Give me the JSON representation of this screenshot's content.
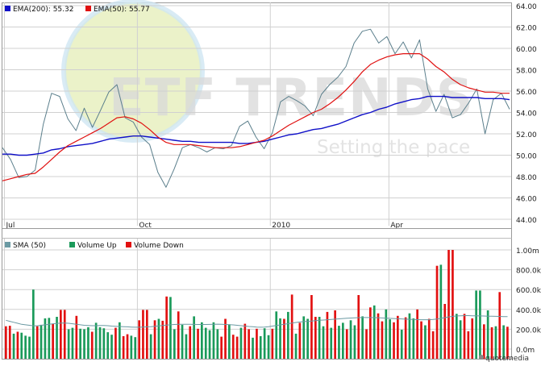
{
  "watermark": {
    "brand": "ETF TRENDS",
    "tagline": "Setting the pace"
  },
  "footer": {
    "credit": "quotemedia"
  },
  "colors": {
    "price": "#5b7f8c",
    "ema200": "#1010c8",
    "ema50": "#e01010",
    "sma50": "#6b9aa3",
    "volume_up": "#1a9a5a",
    "volume_down": "#e21010",
    "grid": "#d0d0d0",
    "axis_text": "#222222",
    "watermark_circle": "#e8efb8"
  },
  "chart_data": [
    {
      "type": "line",
      "panel": "price",
      "legend": [
        {
          "name": "EMA(200)",
          "value": "55.32",
          "color": "#1010c8"
        },
        {
          "name": "EMA(50)",
          "value": "55.77",
          "color": "#e01010"
        }
      ],
      "x_tick_labels": [
        "Jul",
        "Oct",
        "2010",
        "Apr"
      ],
      "x_tick_positions": [
        1,
        66,
        131,
        189
      ],
      "y_tick_labels": [
        "44.00",
        "46.00",
        "48.00",
        "50.00",
        "52.00",
        "54.00",
        "56.00",
        "58.00",
        "60.00",
        "62.00",
        "64.00"
      ],
      "ylim": [
        44,
        64
      ],
      "grid": true,
      "x": [
        0,
        4,
        8,
        12,
        16,
        20,
        24,
        28,
        32,
        36,
        40,
        44,
        48,
        52,
        56,
        60,
        64,
        68,
        72,
        76,
        80,
        84,
        88,
        92,
        96,
        100,
        104,
        108,
        112,
        116,
        120,
        124,
        128,
        132,
        136,
        140,
        144,
        148,
        152,
        156,
        160,
        164,
        168,
        172,
        176,
        180,
        184,
        188,
        192,
        196,
        200,
        204,
        208,
        212,
        216,
        220,
        224,
        228,
        232,
        236,
        240,
        244,
        248
      ],
      "series": [
        {
          "name": "Price",
          "values": [
            50.7,
            49.6,
            47.9,
            48.0,
            48.6,
            52.9,
            55.8,
            55.5,
            53.4,
            52.3,
            54.4,
            52.6,
            54.2,
            55.9,
            56.6,
            53.5,
            53.1,
            51.7,
            51.0,
            48.4,
            47.0,
            48.7,
            50.7,
            51.0,
            50.7,
            50.3,
            50.7,
            50.6,
            50.9,
            52.7,
            53.2,
            51.7,
            50.6,
            52.1,
            55.0,
            55.5,
            55.1,
            54.6,
            53.7,
            55.7,
            56.6,
            57.3,
            58.3,
            60.5,
            61.6,
            61.8,
            60.5,
            61.1,
            59.5,
            60.6,
            59.1,
            60.8,
            56.2,
            54.1,
            55.7,
            53.5,
            53.8,
            54.9,
            56.2,
            52.0,
            55.2,
            55.8,
            54.3
          ]
        },
        {
          "name": "EMA(200)",
          "values": [
            50.1,
            50.1,
            50.0,
            50.0,
            50.1,
            50.2,
            50.5,
            50.6,
            50.8,
            50.9,
            51.0,
            51.1,
            51.3,
            51.5,
            51.6,
            51.7,
            51.8,
            51.8,
            51.7,
            51.6,
            51.5,
            51.4,
            51.3,
            51.3,
            51.2,
            51.2,
            51.2,
            51.2,
            51.2,
            51.1,
            51.1,
            51.2,
            51.3,
            51.5,
            51.7,
            51.9,
            52.0,
            52.2,
            52.4,
            52.5,
            52.7,
            52.9,
            53.2,
            53.5,
            53.8,
            54.0,
            54.3,
            54.5,
            54.8,
            55.0,
            55.2,
            55.3,
            55.5,
            55.5,
            55.5,
            55.4,
            55.4,
            55.4,
            55.4,
            55.3,
            55.3,
            55.3,
            55.2
          ]
        },
        {
          "name": "EMA(50)",
          "values": [
            47.6,
            47.8,
            48.0,
            48.2,
            48.3,
            48.9,
            49.6,
            50.3,
            50.9,
            51.3,
            51.7,
            52.1,
            52.5,
            53.0,
            53.5,
            53.6,
            53.4,
            53.0,
            52.4,
            51.7,
            51.2,
            51.0,
            51.0,
            51.0,
            50.9,
            50.8,
            50.7,
            50.7,
            50.7,
            50.8,
            51.0,
            51.2,
            51.4,
            51.8,
            52.3,
            52.8,
            53.2,
            53.6,
            54.0,
            54.3,
            54.8,
            55.4,
            56.1,
            56.9,
            57.8,
            58.5,
            58.9,
            59.2,
            59.4,
            59.5,
            59.5,
            59.5,
            59.0,
            58.3,
            57.8,
            57.1,
            56.6,
            56.3,
            56.1,
            55.9,
            55.9,
            55.8,
            55.8
          ]
        }
      ]
    },
    {
      "type": "bar",
      "panel": "volume",
      "legend": [
        {
          "name": "SMA (50)",
          "color": "#6b9aa3"
        },
        {
          "name": "Volume Up",
          "color": "#1a9a5a"
        },
        {
          "name": "Volume Down",
          "color": "#e21010"
        }
      ],
      "y_tick_labels": [
        "0.0m",
        "200.0k",
        "400.0k",
        "600.0k",
        "800.0k",
        "1.00m"
      ],
      "ylim": [
        0,
        1000000
      ],
      "grid": true,
      "series": [
        {
          "name": "Volume",
          "values": [
            230000,
            235000,
            155000,
            175000,
            165000,
            135000,
            125000,
            600000,
            230000,
            245000,
            310000,
            315000,
            255000,
            325000,
            395000,
            395000,
            200000,
            215000,
            335000,
            205000,
            200000,
            220000,
            175000,
            265000,
            220000,
            210000,
            170000,
            145000,
            215000,
            270000,
            130000,
            150000,
            135000,
            120000,
            290000,
            395000,
            395000,
            150000,
            290000,
            305000,
            285000,
            530000,
            525000,
            200000,
            380000,
            245000,
            150000,
            230000,
            330000,
            205000,
            270000,
            215000,
            190000,
            270000,
            200000,
            125000,
            305000,
            250000,
            145000,
            125000,
            215000,
            255000,
            200000,
            115000,
            205000,
            130000,
            210000,
            140000,
            205000,
            380000,
            310000,
            305000,
            375000,
            550000,
            155000,
            265000,
            330000,
            305000,
            545000,
            325000,
            325000,
            230000,
            375000,
            215000,
            390000,
            235000,
            265000,
            200000,
            290000,
            240000,
            545000,
            330000,
            200000,
            420000,
            440000,
            360000,
            280000,
            400000,
            300000,
            270000,
            335000,
            195000,
            320000,
            360000,
            310000,
            400000,
            280000,
            240000,
            305000,
            180000,
            840000,
            850000,
            455000,
            1000000,
            1000000,
            355000,
            290000,
            355000,
            180000,
            310000,
            590000,
            590000,
            250000,
            390000,
            220000,
            230000,
            575000,
            240000,
            225000
          ],
          "directions": [
            "d",
            "d",
            "u",
            "d",
            "u",
            "u",
            "u",
            "u",
            "d",
            "u",
            "u",
            "u",
            "d",
            "u",
            "d",
            "d",
            "u",
            "u",
            "d",
            "u",
            "u",
            "u",
            "d",
            "u",
            "u",
            "u",
            "u",
            "u",
            "d",
            "u",
            "d",
            "d",
            "u",
            "u",
            "d",
            "d",
            "d",
            "u",
            "d",
            "u",
            "d",
            "d",
            "u",
            "u",
            "d",
            "u",
            "u",
            "d",
            "u",
            "d",
            "u",
            "u",
            "u",
            "u",
            "u",
            "d",
            "d",
            "u",
            "d",
            "d",
            "u",
            "d",
            "d",
            "u",
            "d",
            "u",
            "u",
            "u",
            "d",
            "u",
            "u",
            "d",
            "u",
            "d",
            "u",
            "d",
            "u",
            "u",
            "d",
            "d",
            "u",
            "u",
            "d",
            "u",
            "d",
            "u",
            "u",
            "d",
            "u",
            "u",
            "d",
            "u",
            "d",
            "d",
            "u",
            "d",
            "d",
            "u",
            "u",
            "d",
            "d",
            "u",
            "d",
            "u",
            "u",
            "d",
            "d",
            "u",
            "d",
            "d",
            "d",
            "u",
            "d",
            "d",
            "d",
            "u",
            "u",
            "d",
            "d",
            "d",
            "u",
            "u",
            "d",
            "u",
            "d",
            "u",
            "d",
            "u",
            "d"
          ]
        },
        {
          "name": "SMA (50)",
          "values": [
            290000,
            280000,
            270000,
            260000,
            250000,
            245000,
            240000,
            235000,
            235000,
            240000,
            245000,
            250000,
            255000,
            258000,
            262000,
            262000,
            260000,
            255000,
            250000,
            245000,
            240000,
            238000,
            236000,
            236000,
            238000,
            238000,
            236000,
            232000,
            230000,
            228000,
            226000,
            224000,
            222000,
            220000,
            220000,
            222000,
            224000,
            226000,
            230000,
            234000,
            238000,
            242000,
            245000,
            248000,
            250000,
            250000,
            250000,
            250000,
            249000,
            248000,
            248000,
            248000,
            249000,
            250000,
            251000,
            250000,
            248000,
            246000,
            244000,
            240000,
            236000,
            232000,
            228000,
            225000,
            222000,
            220000,
            222000,
            226000,
            232000,
            238000,
            244000,
            250000,
            256000,
            262000,
            268000,
            273000,
            277000,
            280000,
            283000,
            286000,
            290000,
            293000,
            296000,
            299000,
            302000,
            305000,
            308000,
            311000,
            313000,
            315000,
            317000,
            318000,
            318000,
            318000,
            317000,
            316000,
            314000,
            312000,
            310000,
            308000,
            306000,
            304000,
            302000,
            300000,
            298000,
            297000,
            296000,
            296000,
            296000,
            298000,
            303000,
            310000,
            317000,
            324000,
            330000,
            334000,
            336000,
            337000,
            337000,
            336000,
            335000,
            334000,
            333000,
            332000,
            331000,
            330000,
            329000,
            328000,
            327000
          ]
        }
      ]
    }
  ]
}
